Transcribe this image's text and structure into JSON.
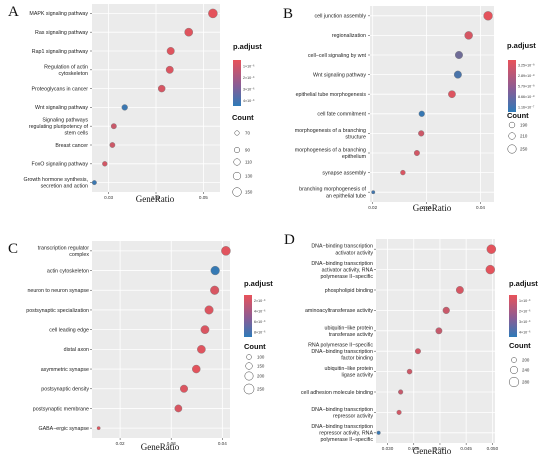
{
  "chart_data": [
    {
      "panel": "A",
      "type": "scatter",
      "xlabel": "GeneRatio",
      "xticks": [
        "0.03",
        "0.04",
        "0.05"
      ],
      "xtick_values": [
        0.03,
        0.04,
        0.05
      ],
      "xlim": [
        0.0265,
        0.0535
      ],
      "categories": [
        "MAPK signaling pathway",
        "Ras signaling pathway",
        "Rap1 signaling pathway",
        "Regulation of actin\ncytoskeleton",
        "Proteoglycans in cancer",
        "Wnt signaling pathway",
        "Signaling pathways\nregulating pluripotency of\nstem cells",
        "Breast cancer",
        "FoxO signaling pathway",
        "Growth hormone synthesis,\nsecretion and action"
      ],
      "x": [
        0.052,
        0.0469,
        0.0431,
        0.0429,
        0.0412,
        0.0334,
        0.0311,
        0.0308,
        0.0292,
        0.027
      ],
      "counts": [
        180,
        163,
        150,
        148,
        141,
        118,
        110,
        108,
        100,
        92
      ],
      "padjust": [
        2e-07,
        3e-07,
        3e-07,
        4e-07,
        5e-07,
        4e-06,
        8e-07,
        7e-07,
        6e-07,
        4e-06
      ],
      "legend": {
        "color_title": "p.adjust",
        "color_labels": [
          "1×10⁻⁶",
          "2×10⁻⁶",
          "3×10⁻⁶",
          "4×10⁻⁶"
        ],
        "color_domain": [
          1e-07,
          4.3e-06
        ],
        "size_title": "Count",
        "size_labels": [
          "70",
          "90",
          "110",
          "130",
          "150"
        ],
        "size_values": [
          70,
          90,
          110,
          130,
          150
        ],
        "size_domain": [
          60,
          190
        ]
      }
    },
    {
      "panel": "B",
      "type": "scatter",
      "xlabel": "GeneRatio",
      "xticks": [
        "0.02",
        "0.03",
        "0.04"
      ],
      "xtick_values": [
        0.02,
        0.03,
        0.04
      ],
      "xlim": [
        0.0195,
        0.0425
      ],
      "categories": [
        "cell junction assembly",
        "regionalization",
        "cell−cell signaling by wnt",
        "Wnt signaling pathway",
        "epithelial tube morphogenesis",
        "cell fate commitment",
        "morphogenesis of a branching\nstructure",
        "morphogenesis of a branching\nepithelium",
        "synapse assembly",
        "branching morphogenesis of\nan epithelial tube"
      ],
      "x": [
        0.0414,
        0.0378,
        0.036,
        0.0358,
        0.0347,
        0.0291,
        0.029,
        0.0282,
        0.0256,
        0.0201
      ],
      "counts": [
        285,
        265,
        255,
        254,
        248,
        215,
        215,
        210,
        196,
        165
      ],
      "padjust": [
        2.2e-08,
        3e-08,
        8.5e-08,
        1.05e-07,
        2.6e-08,
        1.15e-07,
        3.5e-08,
        3.2e-08,
        2.8e-08,
        1.1e-07
      ],
      "legend": {
        "color_title": "p.adjust",
        "color_labels": [
          "3.25×10⁻⁸",
          "2.89×10⁻⁸",
          "5.79×10⁻⁸",
          "8.66×10⁻⁸",
          "1.16×10⁻⁷"
        ],
        "color_domain": [
          2e-08,
          1.2e-07
        ],
        "size_title": "Count",
        "size_labels": [
          "190",
          "210",
          "250"
        ],
        "size_values": [
          190,
          210,
          250
        ],
        "size_domain": [
          150,
          300
        ]
      }
    },
    {
      "panel": "C",
      "type": "scatter",
      "xlabel": "GeneRatio",
      "xticks": [
        "0.02",
        "0.03",
        "0.04"
      ],
      "xtick_values": [
        0.02,
        0.03,
        0.04
      ],
      "xlim": [
        0.0145,
        0.0415
      ],
      "categories": [
        "transcription regulator\ncomplex",
        "actin cytoskeleton",
        "neuron to neuron synapse",
        "postsynaptic specialization",
        "cell leading edge",
        "distal axon",
        "asymmetric synapse",
        "postsynaptic density",
        "postsynaptic membrane",
        "GABA−ergic synapse"
      ],
      "x": [
        0.0407,
        0.0386,
        0.0385,
        0.0374,
        0.0366,
        0.0359,
        0.0349,
        0.0325,
        0.0314,
        0.0158
      ],
      "counts": [
        255,
        245,
        242,
        238,
        232,
        228,
        224,
        210,
        202,
        85
      ],
      "padjust": [
        8e-07,
        8.2e-06,
        1.2e-06,
        1e-06,
        1.1e-06,
        9e-07,
        7e-07,
        1e-06,
        1.2e-06,
        8e-07
      ],
      "legend": {
        "color_title": "p.adjust",
        "color_labels": [
          "2×10⁻⁶",
          "4×10⁻⁶",
          "6×10⁻⁶",
          "8×10⁻⁶"
        ],
        "color_domain": [
          5e-07,
          8.5e-06
        ],
        "size_title": "Count",
        "size_labels": [
          "100",
          "150",
          "200",
          "250"
        ],
        "size_values": [
          100,
          150,
          200,
          250
        ],
        "size_domain": [
          70,
          270
        ]
      }
    },
    {
      "panel": "D",
      "type": "scatter",
      "xlabel": "GeneRatio",
      "xticks": [
        "0.030",
        "0.035",
        "0.040",
        "0.045",
        "0.050"
      ],
      "xtick_values": [
        0.03,
        0.035,
        0.04,
        0.045,
        0.05
      ],
      "xlim": [
        0.0278,
        0.0505
      ],
      "categories": [
        "DNA−binding transcription\nactivator activity",
        "DNA−binding transcription\nactivator activity, RNA\npolymerase II−specific",
        "phospholipid binding",
        "aminoacyltransferase activity",
        "ubiquitin−like protein\ntransferase activity",
        "RNA polymerase II−specific\nDNA−binding transcription\nfactor binding",
        "ubiquitin−like protein\nligase activity",
        "cell adhesion molecule binding",
        "DNA−binding transcription\nrepressor activity",
        "DNA−binding transcription\nrepressor activity, RNA\npolymerase II−specific"
      ],
      "x": [
        0.0498,
        0.0496,
        0.0438,
        0.0412,
        0.0398,
        0.0358,
        0.0342,
        0.0325,
        0.0322,
        0.0283
      ],
      "counts": [
        290,
        288,
        262,
        250,
        244,
        228,
        220,
        213,
        212,
        196
      ],
      "padjust": [
        2e-07,
        2e-07,
        5e-07,
        8e-07,
        9e-07,
        6e-07,
        7e-07,
        9e-07,
        6e-07,
        4.1e-06
      ],
      "legend": {
        "color_title": "p.adjust",
        "color_labels": [
          "1×10⁻⁶",
          "2×10⁻⁶",
          "3×10⁻⁶",
          "4×10⁻⁶"
        ],
        "color_domain": [
          1e-07,
          4.3e-06
        ],
        "size_title": "Count",
        "size_labels": [
          "200",
          "240",
          "280"
        ],
        "size_values": [
          200,
          240,
          280
        ],
        "size_domain": [
          180,
          300
        ]
      }
    }
  ],
  "colors": {
    "low": "#e8525a",
    "high": "#2e7ab8",
    "panel_bg": "#ebebeb",
    "grid": "#ffffff"
  }
}
